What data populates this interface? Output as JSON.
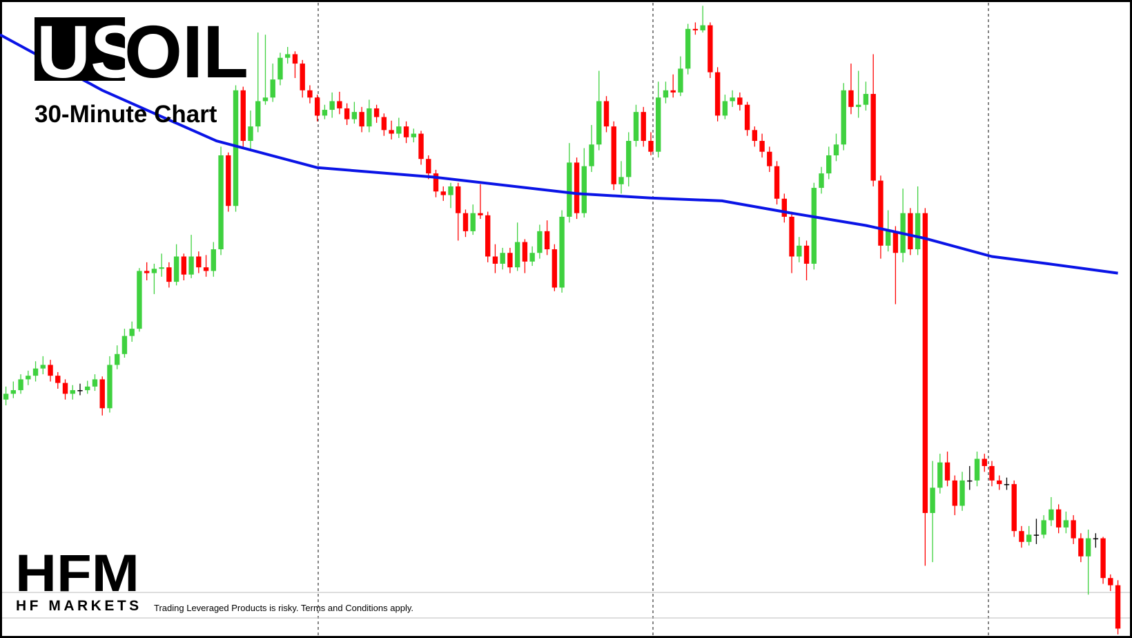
{
  "chart_data": {
    "type": "candlestick",
    "title_highlight": "US",
    "title_rest": "OIL",
    "subtitle": "30-Minute Chart",
    "up_color": "#3fd13f",
    "down_color": "#ff0000",
    "xlim": [
      -0.8,
      151.9
    ],
    "ylim": [
      0,
      883
    ],
    "open": [
      330,
      338,
      343,
      358,
      363,
      373,
      378,
      363,
      353,
      338,
      343,
      343,
      348,
      358,
      318,
      378,
      393,
      418,
      428,
      508,
      505,
      511,
      513,
      493,
      528,
      503,
      528,
      513,
      508,
      538,
      668,
      598,
      758,
      688,
      708,
      743,
      748,
      773,
      803,
      808,
      795,
      758,
      748,
      723,
      731,
      743,
      733,
      718,
      728,
      708,
      733,
      721,
      703,
      698,
      708,
      693,
      698,
      663,
      643,
      618,
      613,
      625,
      588,
      563,
      588,
      585,
      528,
      518,
      533,
      513,
      548,
      521,
      533,
      563,
      538,
      485,
      583,
      658,
      588,
      653,
      683,
      743,
      708,
      628,
      638,
      688,
      728,
      688,
      673,
      748,
      758,
      755,
      788,
      843,
      841,
      848,
      783,
      723,
      743,
      748,
      738,
      703,
      688,
      673,
      653,
      608,
      583,
      528,
      543,
      518,
      623,
      643,
      668,
      683,
      758,
      735,
      738,
      753,
      633,
      543,
      563,
      533,
      588,
      538,
      588,
      173,
      208,
      243,
      218,
      183,
      218,
      218,
      248,
      238,
      218,
      213,
      213,
      148,
      133,
      143,
      143,
      163,
      178,
      153,
      163,
      138,
      113,
      138,
      138,
      83,
      73
    ],
    "high": [
      348,
      355,
      365,
      370,
      383,
      390,
      385,
      368,
      358,
      350,
      352,
      356,
      365,
      362,
      390,
      405,
      428,
      438,
      512,
      520,
      518,
      532,
      520,
      545,
      532,
      558,
      535,
      530,
      548,
      680,
      672,
      765,
      763,
      730,
      838,
      835,
      795,
      810,
      818,
      812,
      800,
      765,
      752,
      738,
      755,
      756,
      740,
      742,
      735,
      745,
      738,
      726,
      716,
      720,
      715,
      705,
      702,
      668,
      648,
      625,
      630,
      630,
      593,
      600,
      628,
      590,
      545,
      540,
      540,
      575,
      552,
      542,
      572,
      578,
      545,
      592,
      685,
      665,
      678,
      710,
      785,
      750,
      715,
      660,
      700,
      738,
      735,
      700,
      770,
      770,
      780,
      805,
      850,
      852,
      875,
      852,
      790,
      752,
      758,
      755,
      742,
      708,
      698,
      680,
      660,
      615,
      590,
      555,
      550,
      630,
      652,
      680,
      698,
      768,
      795,
      785,
      770,
      808,
      640,
      592,
      570,
      622,
      595,
      625,
      595,
      245,
      255,
      258,
      225,
      230,
      238,
      258,
      255,
      245,
      225,
      222,
      218,
      155,
      155,
      165,
      170,
      195,
      185,
      175,
      170,
      145,
      150,
      145,
      140,
      88,
      80
    ],
    "low": [
      322,
      332,
      338,
      350,
      355,
      365,
      355,
      345,
      330,
      330,
      336,
      338,
      342,
      308,
      312,
      372,
      388,
      410,
      424,
      495,
      476,
      500,
      485,
      488,
      495,
      498,
      505,
      500,
      500,
      530,
      590,
      590,
      680,
      675,
      700,
      738,
      742,
      765,
      795,
      775,
      748,
      740,
      715,
      718,
      720,
      725,
      710,
      712,
      700,
      700,
      713,
      695,
      690,
      692,
      685,
      686,
      655,
      635,
      610,
      605,
      595,
      550,
      555,
      558,
      580,
      520,
      505,
      510,
      505,
      508,
      505,
      515,
      525,
      530,
      480,
      478,
      575,
      580,
      582,
      645,
      675,
      700,
      620,
      615,
      625,
      680,
      680,
      668,
      665,
      740,
      748,
      750,
      780,
      835,
      838,
      775,
      715,
      718,
      735,
      730,
      695,
      680,
      665,
      645,
      600,
      575,
      505,
      520,
      495,
      510,
      615,
      635,
      660,
      675,
      725,
      720,
      730,
      625,
      525,
      535,
      462,
      520,
      530,
      530,
      100,
      105,
      200,
      210,
      170,
      176,
      205,
      210,
      230,
      210,
      205,
      205,
      140,
      125,
      128,
      130,
      138,
      155,
      145,
      145,
      130,
      105,
      60,
      125,
      75,
      65,
      5
    ],
    "close": [
      338,
      343,
      358,
      363,
      373,
      378,
      363,
      353,
      338,
      343,
      343,
      348,
      358,
      318,
      378,
      393,
      418,
      428,
      508,
      505,
      511,
      513,
      493,
      528,
      503,
      528,
      513,
      508,
      538,
      668,
      598,
      758,
      688,
      708,
      743,
      748,
      773,
      803,
      808,
      795,
      758,
      748,
      723,
      731,
      743,
      733,
      718,
      728,
      708,
      733,
      721,
      703,
      698,
      708,
      693,
      698,
      663,
      643,
      618,
      613,
      625,
      588,
      563,
      588,
      585,
      528,
      518,
      533,
      513,
      548,
      521,
      533,
      563,
      538,
      485,
      583,
      658,
      588,
      653,
      683,
      743,
      708,
      628,
      638,
      688,
      728,
      688,
      673,
      748,
      758,
      755,
      788,
      843,
      841,
      848,
      783,
      723,
      743,
      748,
      738,
      703,
      688,
      673,
      653,
      608,
      583,
      528,
      543,
      518,
      623,
      643,
      668,
      683,
      758,
      735,
      738,
      753,
      633,
      543,
      563,
      533,
      588,
      538,
      588,
      173,
      208,
      243,
      218,
      183,
      218,
      218,
      248,
      238,
      218,
      213,
      213,
      148,
      133,
      143,
      143,
      163,
      178,
      153,
      163,
      138,
      113,
      138,
      138,
      83,
      73,
      13
    ],
    "ma": {
      "color": "#0a14e6",
      "x": [
        -0.8,
        13,
        28.4,
        42,
        57.6,
        77,
        87,
        96.6,
        106,
        116,
        124,
        133,
        140.5,
        150
      ],
      "values": [
        835,
        758,
        688,
        651,
        638,
        615,
        609,
        605,
        588,
        571,
        553,
        528,
        518,
        505
      ]
    }
  },
  "branding": {
    "logo": "HFM",
    "company": "HF MARKETS",
    "disclaimer": "Trading Leveraged Products is risky. Terms and Conditions apply."
  }
}
